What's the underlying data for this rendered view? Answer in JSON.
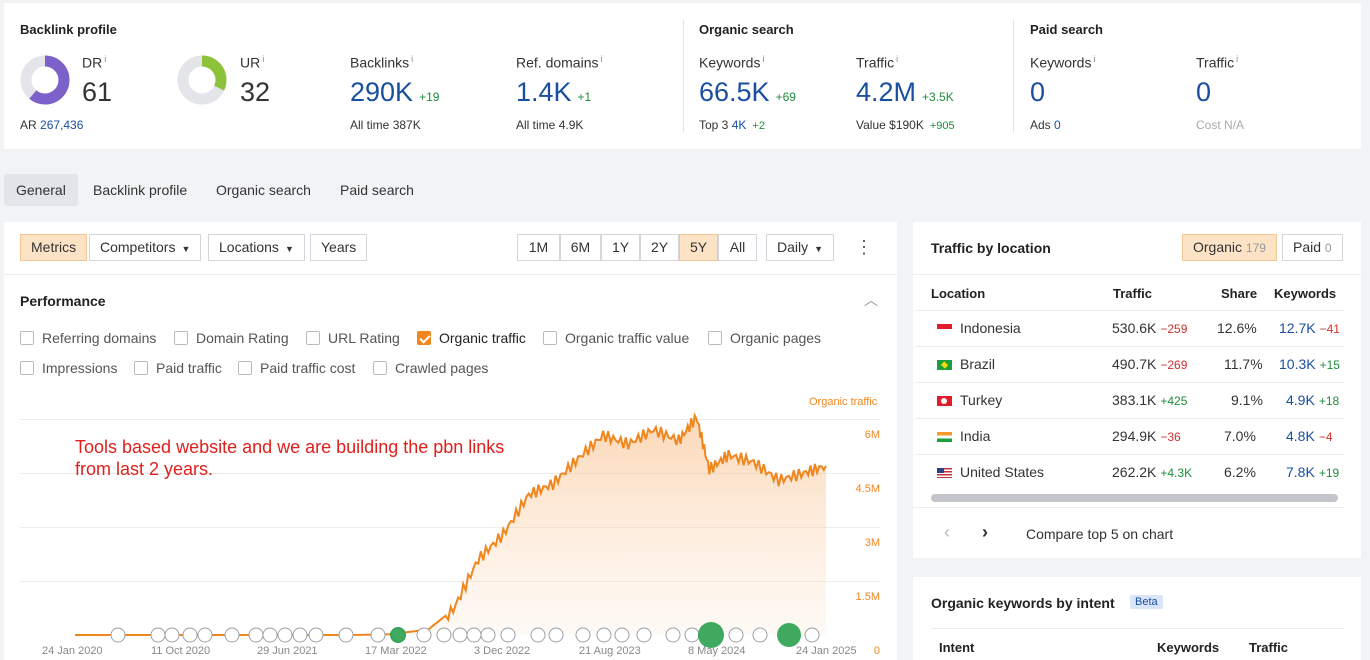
{
  "backlink_profile": {
    "title": "Backlink profile",
    "dr": {
      "label": "DR",
      "value": "61",
      "ratio": 0.61
    },
    "ar": {
      "label": "AR",
      "value": "267,436"
    },
    "ur": {
      "label": "UR",
      "value": "32",
      "ratio": 0.32
    },
    "backlinks": {
      "label": "Backlinks",
      "value": "290K",
      "delta": "+19",
      "sub_label": "All time",
      "sub_value": "387K"
    },
    "ref_domains": {
      "label": "Ref. domains",
      "value": "1.4K",
      "delta": "+1",
      "sub_label": "All time",
      "sub_value": "4.9K"
    }
  },
  "organic_search": {
    "title": "Organic search",
    "keywords": {
      "label": "Keywords",
      "value": "66.5K",
      "delta": "+69",
      "sub_label": "Top 3",
      "sub_value": "4K",
      "sub_delta": "+2"
    },
    "traffic": {
      "label": "Traffic",
      "value": "4.2M",
      "delta": "+3.5K",
      "sub_label": "Value",
      "sub_value": "$190K",
      "sub_delta": "+905"
    }
  },
  "paid_search": {
    "title": "Paid search",
    "keywords": {
      "label": "Keywords",
      "value": "0",
      "sub_label": "Ads",
      "sub_value": "0"
    },
    "traffic": {
      "label": "Traffic",
      "value": "0",
      "sub_label": "Cost",
      "sub_value": "N/A"
    }
  },
  "info_sup": "i",
  "nav_tabs": [
    "General",
    "Backlink profile",
    "Organic search",
    "Paid search"
  ],
  "toolbar": {
    "metrics": "Metrics",
    "competitors": "Competitors",
    "locations": "Locations",
    "years": "Years",
    "ranges": [
      "1M",
      "6M",
      "1Y",
      "2Y",
      "5Y",
      "All"
    ],
    "selected_range": "5Y",
    "interval": "Daily",
    "more": "⋮"
  },
  "performance": {
    "title": "Performance",
    "checkboxes": [
      {
        "label": "Referring domains",
        "checked": false
      },
      {
        "label": "Domain Rating",
        "checked": false
      },
      {
        "label": "URL Rating",
        "checked": false
      },
      {
        "label": "Organic traffic",
        "checked": true
      },
      {
        "label": "Organic traffic value",
        "checked": false
      },
      {
        "label": "Organic pages",
        "checked": false
      },
      {
        "label": "Impressions",
        "checked": false
      },
      {
        "label": "Paid traffic",
        "checked": false
      },
      {
        "label": "Paid traffic cost",
        "checked": false
      },
      {
        "label": "Crawled pages",
        "checked": false
      }
    ],
    "annotation": [
      "Tools based website and we are building the pbn links",
      "from last 2 years."
    ]
  },
  "chart_data": {
    "type": "line",
    "series": [
      {
        "name": "Organic traffic",
        "color": "#f0861e",
        "x": [
          "2020-01-24",
          "2020-06-01",
          "2021-01-01",
          "2021-06-01",
          "2021-12-01",
          "2022-03-01",
          "2022-06-01",
          "2022-08-01",
          "2022-10-01",
          "2022-12-01",
          "2023-02-01",
          "2023-04-01",
          "2023-06-01",
          "2023-08-01",
          "2023-10-01",
          "2023-12-01",
          "2024-02-01",
          "2024-03-15",
          "2024-04-15",
          "2024-06-01",
          "2024-08-01",
          "2024-10-01",
          "2024-12-01",
          "2025-01-24"
        ],
        "values": [
          0,
          0,
          0,
          0,
          0,
          20000,
          150000,
          700000,
          2100000,
          2800000,
          3900000,
          4200000,
          4900000,
          5550000,
          5300000,
          5700000,
          5400000,
          6050000,
          4600000,
          5000000,
          4800000,
          4300000,
          4500000,
          4700000
        ]
      }
    ],
    "y_ticks": [
      "0",
      "1.5M",
      "3M",
      "4.5M",
      "6M"
    ],
    "ylim": [
      0,
      6000000
    ],
    "x_ticks": [
      "24 Jan 2020",
      "11 Oct 2020",
      "29 Jun 2021",
      "17 Mar 2022",
      "3 Dec 2022",
      "21 Aug 2023",
      "8 May 2024",
      "24 Jan 2025"
    ],
    "legend": "Organic traffic",
    "grid": true
  },
  "traffic_by_location": {
    "title": "Traffic by location",
    "organic_label": "Organic",
    "organic_count": "179",
    "paid_label": "Paid",
    "paid_count": "0",
    "headers": [
      "Location",
      "Traffic",
      "Share",
      "Keywords"
    ],
    "rows": [
      {
        "country": "Indonesia",
        "traffic": "530.6K",
        "delta": "−259",
        "delta_color": "#d0312d",
        "share": "12.6%",
        "keywords": "12.7K",
        "kw_delta": "−41",
        "kw_color": "#d0312d"
      },
      {
        "country": "Brazil",
        "traffic": "490.7K",
        "delta": "−269",
        "delta_color": "#d0312d",
        "share": "11.7%",
        "keywords": "10.3K",
        "kw_delta": "+15",
        "kw_color": "#1e8c3a"
      },
      {
        "country": "Turkey",
        "traffic": "383.1K",
        "delta": "+425",
        "delta_color": "#1e8c3a",
        "share": "9.1%",
        "keywords": "4.9K",
        "kw_delta": "+18",
        "kw_color": "#1e8c3a"
      },
      {
        "country": "India",
        "traffic": "294.9K",
        "delta": "−36",
        "delta_color": "#d0312d",
        "share": "7.0%",
        "keywords": "4.8K",
        "kw_delta": "−4",
        "kw_color": "#d0312d"
      },
      {
        "country": "United States",
        "traffic": "262.2K",
        "delta": "+4.3K",
        "delta_color": "#1e8c3a",
        "share": "6.2%",
        "keywords": "7.8K",
        "kw_delta": "+19",
        "kw_color": "#1e8c3a"
      }
    ],
    "compare_label": "Compare top 5 on chart"
  },
  "intent": {
    "title": "Organic keywords by intent",
    "badge": "Beta",
    "headers": [
      "Intent",
      "Keywords",
      "Traffic"
    ]
  }
}
